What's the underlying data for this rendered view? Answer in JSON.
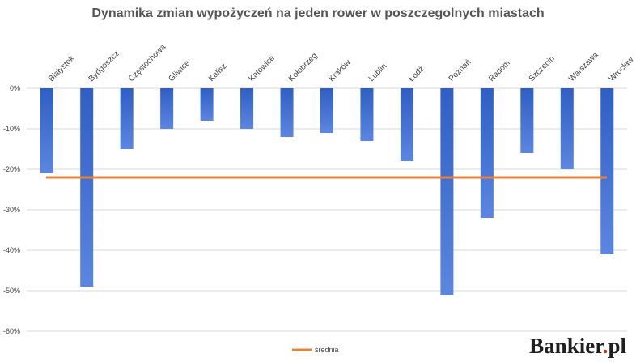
{
  "chart_data": {
    "type": "bar",
    "title": "Dynamika zmian wypożyczeń na jeden rower w poszczegolnych miastach",
    "categories": [
      "Białystok",
      "Bydgoszcz",
      "Częstochowa",
      "Gliwice",
      "Kalisz",
      "Katowice",
      "Kołobrzeg",
      "Kraków",
      "Lublin",
      "Łódź",
      "Poznań",
      "Radom",
      "Szczecin",
      "Warszawa",
      "Wrocław"
    ],
    "values": [
      -21,
      -49,
      -15,
      -10,
      -8,
      -10,
      -12,
      -11,
      -13,
      -18,
      -51,
      -32,
      -16,
      -20,
      -41
    ],
    "average": {
      "label": "średnia",
      "value": -22
    },
    "ylim": [
      -60,
      0
    ],
    "yticks": [
      0,
      -10,
      -20,
      -30,
      -40,
      -50,
      -60
    ],
    "ytick_labels": [
      "0%",
      "-10%",
      "-20%",
      "-30%",
      "-40%",
      "-50%",
      "-60%"
    ],
    "grid": true,
    "legend": "bottom-center",
    "colors": {
      "bar_top": "#2f5fc4",
      "bar_bottom": "#5b86e0",
      "average_line": "#e8833a",
      "grid": "#d9d9d9",
      "text": "#444444"
    }
  },
  "brand": {
    "name": "Bankier",
    "dot": ".",
    "tld": "pl"
  }
}
